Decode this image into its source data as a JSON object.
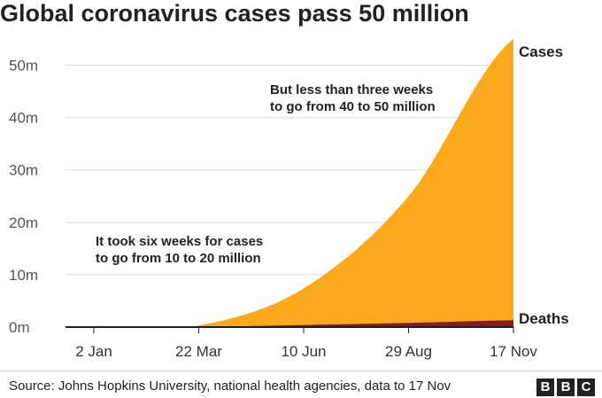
{
  "title": "Global coronavirus cases pass 50 million",
  "source": "Source: Johns Hopkins University, national health agencies, data to 17 Nov",
  "logo": [
    "B",
    "B",
    "C"
  ],
  "colors": {
    "cases": "#FBA91A",
    "deaths": "#8B1A1A",
    "grid": "#dcdcdc",
    "axis": "#222222"
  },
  "chart_data": {
    "type": "area",
    "title": "Global coronavirus cases pass 50 million",
    "xlabel": "",
    "ylabel": "",
    "x_ticks": [
      "2 Jan",
      "22 Mar",
      "10 Jun",
      "29 Aug",
      "17 Nov"
    ],
    "y_ticks": [
      "0m",
      "10m",
      "20m",
      "30m",
      "40m",
      "50m"
    ],
    "ylim": [
      0,
      55
    ],
    "y_unit": "million",
    "grid": "horizontal",
    "x": [
      "2 Jan",
      "22 Mar",
      "10 Jun",
      "29 Aug",
      "17 Nov"
    ],
    "series": [
      {
        "name": "Cases",
        "values": [
          0,
          0.3,
          7.4,
          25,
          55
        ]
      },
      {
        "name": "Deaths",
        "values": [
          0,
          0.02,
          0.4,
          0.8,
          1.3
        ]
      }
    ],
    "annotations": [
      {
        "lines": [
          "But less than three weeks",
          "to go from 40 to 50 million"
        ]
      },
      {
        "lines": [
          "It took six weeks for cases",
          "to go from 10 to 20 million"
        ]
      }
    ]
  }
}
